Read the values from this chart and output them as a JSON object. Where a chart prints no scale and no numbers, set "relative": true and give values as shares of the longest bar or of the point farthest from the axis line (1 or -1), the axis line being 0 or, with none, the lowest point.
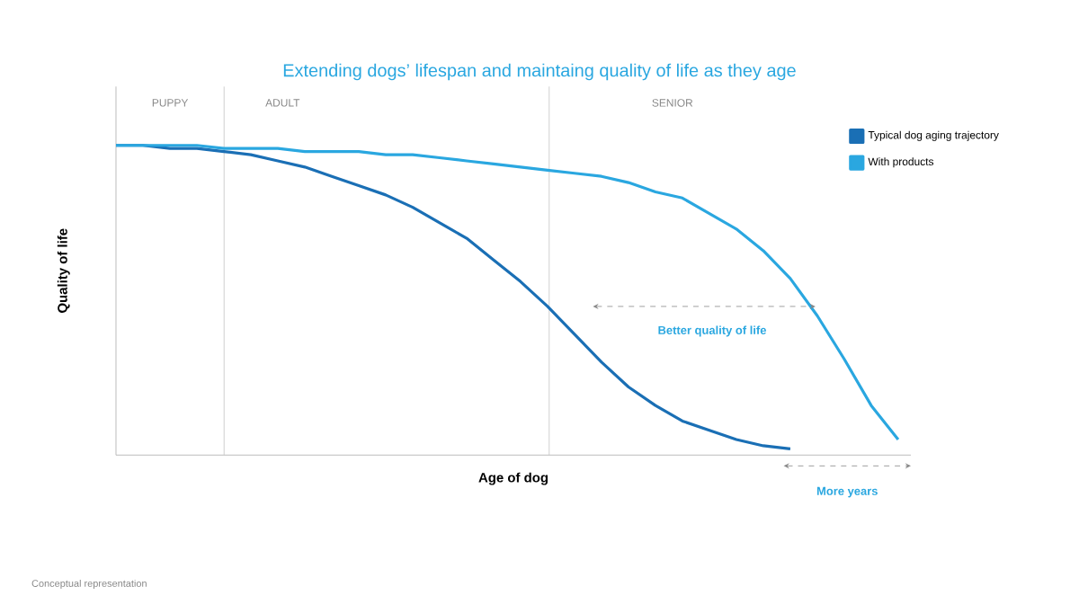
{
  "chart_data": {
    "type": "line",
    "relative": true,
    "title": "Extending dogs’ lifespan and maintaing quality of life as they age",
    "xlabel": "Age of dog",
    "ylabel": "Quality of life",
    "categories": [
      null,
      null,
      null,
      null,
      null,
      null,
      null,
      null,
      null,
      null,
      null,
      null,
      null,
      null,
      null,
      null,
      null,
      null,
      null,
      null,
      null,
      null,
      null,
      null,
      null,
      null,
      null,
      null,
      null,
      null
    ],
    "series": [
      {
        "name": "Typical dog aging trajectory",
        "color": "#1a6fb5",
        "values": [
          1.0,
          1.0,
          0.99,
          0.99,
          0.98,
          0.97,
          0.95,
          0.93,
          0.9,
          0.87,
          0.84,
          0.8,
          0.75,
          0.7,
          0.63,
          0.56,
          0.48,
          0.39,
          0.3,
          0.22,
          0.16,
          0.11,
          0.08,
          0.05,
          0.03,
          0.02,
          null,
          null,
          null,
          null
        ]
      },
      {
        "name": "With products",
        "color": "#2aa7e0",
        "values": [
          1.0,
          1.0,
          1.0,
          1.0,
          0.99,
          0.99,
          0.99,
          0.98,
          0.98,
          0.98,
          0.97,
          0.97,
          0.96,
          0.95,
          0.94,
          0.93,
          0.92,
          0.91,
          0.9,
          0.88,
          0.85,
          0.83,
          0.78,
          0.73,
          0.66,
          0.57,
          0.45,
          0.31,
          0.16,
          0.05
        ]
      }
    ],
    "annotations": [
      "PUPPY",
      "ADULT",
      "SENIOR",
      "Better quality of life",
      "More years",
      "Conceptual representation"
    ],
    "legend": "right",
    "marker": "none",
    "line_style": "solid"
  }
}
